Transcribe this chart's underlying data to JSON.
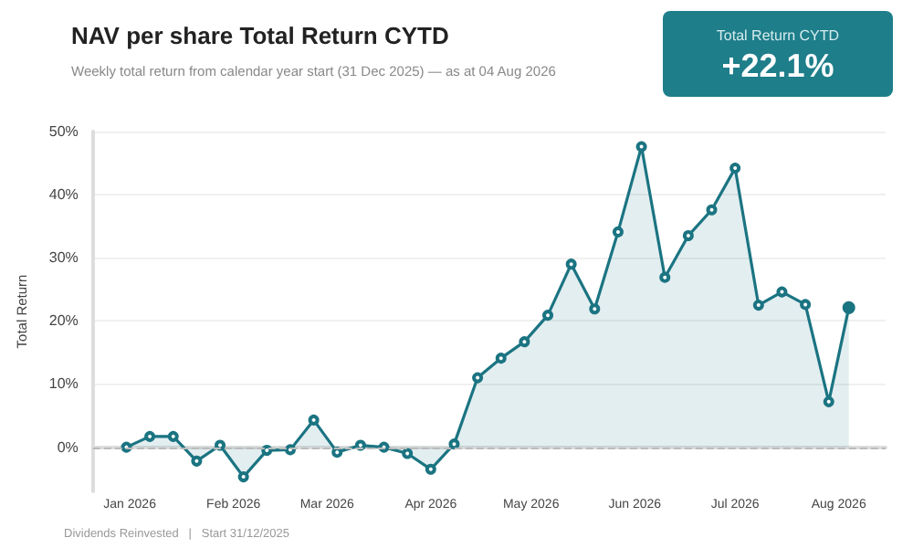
{
  "chart_data": {
    "type": "area",
    "title": "NAV per share Total Return CYTD",
    "subtitle": "Weekly total return from calendar year start (31 Dec 2025) — as at 04 Aug 2026",
    "ylabel": "Total Return",
    "annotations": [
      "Total Return CYTD",
      "+22.1%",
      "Dividends Reinvested   |   Start 31/12/2025"
    ],
    "x": [
      "2025-12-31",
      "2026-01-07",
      "2026-01-14",
      "2026-01-21",
      "2026-01-28",
      "2026-02-04",
      "2026-02-11",
      "2026-02-18",
      "2026-02-25",
      "2026-03-04",
      "2026-03-11",
      "2026-03-18",
      "2026-03-25",
      "2026-04-01",
      "2026-04-08",
      "2026-04-15",
      "2026-04-22",
      "2026-04-29",
      "2026-05-06",
      "2026-05-13",
      "2026-05-20",
      "2026-05-27",
      "2026-06-03",
      "2026-06-10",
      "2026-06-17",
      "2026-06-24",
      "2026-07-01",
      "2026-07-08",
      "2026-07-15",
      "2026-07-22",
      "2026-07-29",
      "2026-08-04"
    ],
    "series": [
      {
        "color": "#1b7482",
        "values": [
          0,
          1.7,
          1.7,
          -2.2,
          0.3,
          -4.7,
          -0.5,
          -0.4,
          4.3,
          -0.8,
          0.3,
          0,
          -1,
          -3.5,
          0.5,
          11,
          14.1,
          16.7,
          20.9,
          29,
          21.9,
          34.1,
          47.6,
          26.9,
          33.5,
          37.6,
          44.2,
          22.5,
          24.6,
          22.6,
          7.2,
          22.1
        ]
      }
    ],
    "xlim": [
      "2025-12-21",
      "2026-08-15"
    ],
    "xticks": [
      {
        "value": "2026-01-01",
        "label": "Jan 2026"
      },
      {
        "value": "2026-02-01",
        "label": "Feb 2026"
      },
      {
        "value": "2026-03-01",
        "label": "Mar 2026"
      },
      {
        "value": "2026-04-01",
        "label": "Apr 2026"
      },
      {
        "value": "2026-05-01",
        "label": "May 2026"
      },
      {
        "value": "2026-06-01",
        "label": "Jun 2026"
      },
      {
        "value": "2026-07-01",
        "label": "Jul 2026"
      },
      {
        "value": "2026-08-01",
        "label": "Aug 2026"
      }
    ],
    "ylim": [
      -7,
      50
    ],
    "yticks": [
      {
        "value": 0,
        "label": "0%"
      },
      {
        "value": 10,
        "label": "10%"
      },
      {
        "value": 20,
        "label": "20%"
      },
      {
        "value": 30,
        "label": "30%"
      },
      {
        "value": 40,
        "label": "40%"
      },
      {
        "value": 50,
        "label": "50%"
      }
    ],
    "ref_lines": [
      {
        "axis": "y",
        "value": 0,
        "label": null,
        "color": "#bbbbbb",
        "line_style": "dashed"
      }
    ],
    "grid": "y",
    "marker": "circle",
    "line_style": "solid"
  }
}
